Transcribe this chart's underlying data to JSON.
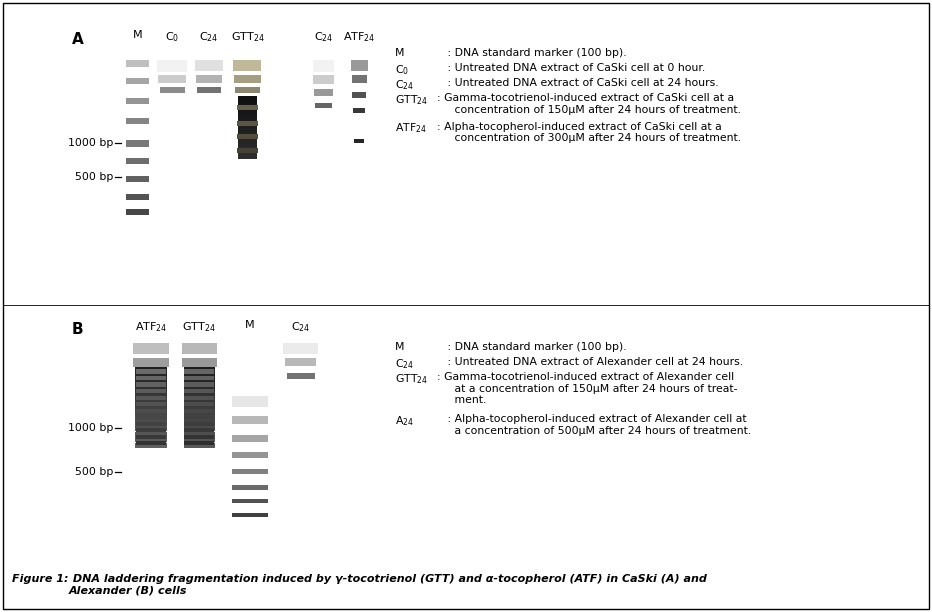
{
  "fig_bg": "#ffffff",
  "border_color": "#000000",
  "text_color": "#000000",
  "panel_A_left_label": "A",
  "panel_B_label": "B",
  "col_labels_A_left": [
    "M",
    "C$_0$",
    "C$_{24}$",
    "GTT$_{24}$"
  ],
  "col_labels_A_right": [
    "C$_{24}$",
    "ATF$_{24}$"
  ],
  "col_labels_B": [
    "ATF$_{24}$",
    "GTT$_{24}$",
    "M",
    "C$_{24}$"
  ],
  "bp_label_1000": "1000 bp",
  "bp_label_500": "500 bp",
  "legend_A": [
    [
      "M",
      "   : DNA standard marker (100 bp)."
    ],
    [
      "C$_0$",
      "   : Untreated DNA extract of CaSki cell at 0 hour."
    ],
    [
      "C$_{24}$",
      "   : Untreated DNA extract of CaSki cell at 24 hours."
    ],
    [
      "GTT$_{24}$",
      ": Gamma-tocotrienol-induced extract of CaSki cell at a\n     concentration of 150μM after 24 hours of treatment."
    ],
    [
      "ATF$_{24}$",
      ": Alpha-tocopherol-induced extract of CaSki cell at a\n     concentration of 300μM after 24 hours of treatment."
    ]
  ],
  "legend_B": [
    [
      "M",
      "   : DNA standard marker (100 bp)."
    ],
    [
      "C$_{24}$",
      "   : Untreated DNA extract of Alexander cell at 24 hours."
    ],
    [
      "GTT$_{24}$",
      ": Gamma-tocotrienol-induced extract of Alexander cell\n     at a concentration of 150μM after 24 hours of treat-\n     ment."
    ],
    [
      "A$_{24}$",
      "   : Alpha-tocopherol-induced extract of Alexander cell at\n     a concentration of 500μM after 24 hours of treatment."
    ]
  ],
  "caption_bold": "Figure 1:",
  "caption_italic": " DNA laddering fragmentation induced by γ-tocotrienol (GTT) and α-tocopherol (ATF) in CaSki (A) and\nAlexander (B) cells"
}
